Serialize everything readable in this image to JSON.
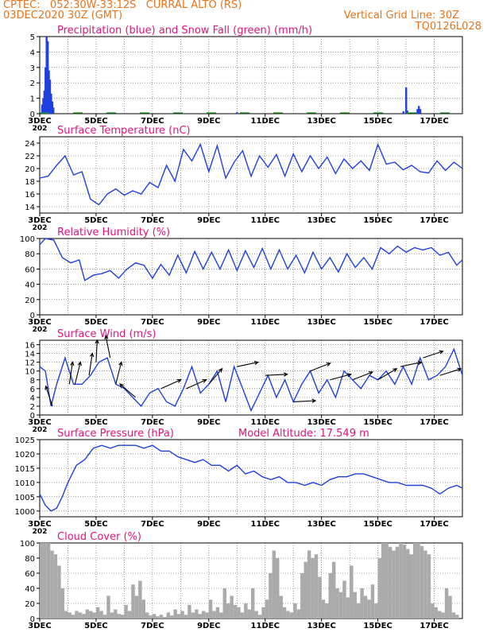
{
  "header": {
    "line1": "CPTEC:   052:30W-33:12S   CURRAL ALTO (RS)",
    "line2": "03DEC2020 30Z (GMT)",
    "grid_note": "Vertical Grid Line: 30Z",
    "model_code": "TQ0126L028"
  },
  "colors": {
    "header": "#e8741c",
    "title": "#e0157a",
    "line": "#1f3fe0",
    "precip": "#1f3fe0",
    "snow": "#1a9a1a",
    "cloud": "#aaaaaa",
    "grid": "#555555",
    "arrow": "#000000"
  },
  "x_axis": {
    "ticks": [
      "3DEC",
      "5DEC",
      "7DEC",
      "9DEC",
      "11DEC",
      "13DEC",
      "15DEC",
      "17DEC"
    ],
    "tick_days": [
      0,
      2,
      4,
      6,
      8,
      10,
      12,
      14
    ],
    "range_days": [
      0,
      15
    ],
    "residual_label": "202"
  },
  "chart_data": [
    {
      "id": "precip",
      "type": "bar",
      "title": "Precipitation (blue) and Snow Fall (green) (mm/h)",
      "ylim": [
        0,
        5
      ],
      "yticks": [
        "0",
        "1",
        "2",
        "3",
        "4",
        "5"
      ],
      "grid": true,
      "bars": [
        {
          "x": 0.08,
          "y": 0.6
        },
        {
          "x": 0.12,
          "y": 1.0
        },
        {
          "x": 0.16,
          "y": 1.5
        },
        {
          "x": 0.2,
          "y": 3.0
        },
        {
          "x": 0.24,
          "y": 5.0
        },
        {
          "x": 0.28,
          "y": 4.7
        },
        {
          "x": 0.32,
          "y": 2.8
        },
        {
          "x": 0.36,
          "y": 2.2
        },
        {
          "x": 0.4,
          "y": 1.3
        },
        {
          "x": 0.44,
          "y": 0.8
        },
        {
          "x": 0.48,
          "y": 0.4
        },
        {
          "x": 12.9,
          "y": 0.15
        },
        {
          "x": 13.0,
          "y": 1.7
        },
        {
          "x": 13.04,
          "y": 0.2
        },
        {
          "x": 13.4,
          "y": 0.3
        },
        {
          "x": 13.45,
          "y": 0.5
        },
        {
          "x": 13.5,
          "y": 0.3
        },
        {
          "x": 7.0,
          "y": 0.1
        }
      ]
    },
    {
      "id": "temp",
      "type": "line",
      "title": "Surface Temperature (nC)",
      "ylim": [
        13,
        25
      ],
      "yticks": [
        "14",
        "16",
        "18",
        "20",
        "22",
        "24"
      ],
      "grid": true,
      "x": [
        0,
        0.3,
        0.6,
        0.9,
        1.2,
        1.5,
        1.8,
        2.1,
        2.4,
        2.7,
        3.0,
        3.3,
        3.6,
        3.9,
        4.2,
        4.5,
        4.8,
        5.1,
        5.4,
        5.7,
        6.0,
        6.3,
        6.6,
        6.9,
        7.2,
        7.5,
        7.8,
        8.1,
        8.4,
        8.7,
        9.0,
        9.3,
        9.6,
        9.9,
        10.2,
        10.5,
        10.8,
        11.1,
        11.4,
        11.7,
        12.0,
        12.3,
        12.6,
        12.9,
        13.2,
        13.5,
        13.8,
        14.1,
        14.4,
        14.7,
        15.0
      ],
      "y": [
        18.5,
        18.8,
        20.5,
        22.0,
        19.0,
        19.5,
        15.2,
        14.3,
        16.0,
        16.8,
        15.8,
        16.5,
        16.0,
        17.8,
        17.0,
        20.5,
        18.0,
        23.0,
        21.2,
        23.8,
        19.5,
        23.6,
        18.5,
        21.0,
        22.8,
        18.8,
        22.0,
        20.2,
        22.2,
        18.8,
        22.3,
        19.5,
        22.0,
        20.0,
        21.8,
        19.2,
        21.5,
        20.0,
        21.2,
        19.7,
        23.8,
        20.7,
        21.0,
        19.8,
        20.5,
        19.5,
        19.3,
        21.2,
        19.7,
        21.0,
        20.0
      ]
    },
    {
      "id": "rh",
      "type": "line",
      "title": "Relative Humidity (%)",
      "ylim": [
        0,
        100
      ],
      "yticks": [
        "0",
        "20",
        "40",
        "60",
        "80",
        "100"
      ],
      "grid": true,
      "x": [
        0,
        0.2,
        0.5,
        0.8,
        1.1,
        1.4,
        1.6,
        1.9,
        2.2,
        2.5,
        2.8,
        3.1,
        3.4,
        3.7,
        4.0,
        4.3,
        4.6,
        4.9,
        5.2,
        5.5,
        5.8,
        6.1,
        6.4,
        6.7,
        7.0,
        7.3,
        7.6,
        7.9,
        8.2,
        8.5,
        8.8,
        9.1,
        9.4,
        9.7,
        10.0,
        10.3,
        10.6,
        10.9,
        11.2,
        11.5,
        11.8,
        12.1,
        12.4,
        12.7,
        13.0,
        13.3,
        13.6,
        13.9,
        14.2,
        14.5,
        14.8,
        15.0
      ],
      "y": [
        92,
        100,
        98,
        75,
        68,
        72,
        45,
        52,
        54,
        58,
        48,
        60,
        68,
        65,
        48,
        66,
        52,
        78,
        55,
        83,
        60,
        82,
        60,
        85,
        58,
        84,
        62,
        87,
        60,
        85,
        60,
        78,
        55,
        82,
        60,
        75,
        56,
        80,
        62,
        75,
        60,
        88,
        80,
        90,
        82,
        88,
        85,
        88,
        78,
        82,
        65,
        72
      ]
    },
    {
      "id": "wind",
      "type": "line",
      "title": "Surface Wind (m/s)",
      "ylim": [
        0,
        17
      ],
      "yticks": [
        "0",
        "2",
        "4",
        "6",
        "8",
        "10",
        "12",
        "14",
        "16"
      ],
      "grid": true,
      "x": [
        0,
        0.2,
        0.4,
        0.6,
        0.9,
        1.2,
        1.5,
        1.8,
        2.1,
        2.4,
        2.7,
        3.0,
        3.3,
        3.6,
        3.9,
        4.2,
        4.5,
        4.8,
        5.1,
        5.4,
        5.7,
        6.0,
        6.3,
        6.6,
        6.9,
        7.2,
        7.5,
        7.8,
        8.1,
        8.4,
        8.7,
        9.0,
        9.3,
        9.6,
        9.9,
        10.2,
        10.5,
        10.8,
        11.1,
        11.4,
        11.7,
        12.0,
        12.3,
        12.6,
        12.9,
        13.2,
        13.5,
        13.8,
        14.1,
        14.4,
        14.7,
        15.0
      ],
      "y": [
        11,
        10,
        2,
        7,
        13,
        7,
        7,
        9,
        12,
        13,
        7,
        6,
        4,
        2,
        5,
        6,
        3,
        2,
        6,
        11,
        5,
        7,
        10,
        3,
        11,
        6,
        1,
        5,
        9,
        4,
        8,
        3,
        7,
        10,
        5,
        8,
        4,
        10,
        8,
        6,
        9,
        8,
        10,
        7,
        11,
        7,
        13,
        8,
        9,
        11,
        15,
        9
      ],
      "arrows": [
        {
          "day": 0.45,
          "dx": -0.3,
          "dy": 0.9
        },
        {
          "day": 1.05,
          "dx": 0.15,
          "dy": 1.0
        },
        {
          "day": 1.25,
          "dx": 0.25,
          "dy": 1.0
        },
        {
          "day": 1.75,
          "dx": 0.15,
          "dy": 1.0
        },
        {
          "day": 2.0,
          "dx": 0.05,
          "dy": 1.0
        },
        {
          "day": 2.5,
          "dx": -0.2,
          "dy": 1.0
        },
        {
          "day": 2.7,
          "dx": 0.25,
          "dy": 1.0
        },
        {
          "day": 3.4,
          "dx": -0.7,
          "dy": 0.6
        },
        {
          "day": 4.3,
          "dx": 0.9,
          "dy": 0.4
        },
        {
          "day": 5.2,
          "dx": 0.9,
          "dy": 0.4
        },
        {
          "day": 6.0,
          "dx": 0.6,
          "dy": 0.7
        },
        {
          "day": 7.0,
          "dx": 0.95,
          "dy": 0.2
        },
        {
          "day": 8.0,
          "dx": 1.0,
          "dy": 0.05
        },
        {
          "day": 9.0,
          "dx": 1.0,
          "dy": 0.05
        },
        {
          "day": 9.6,
          "dx": 0.9,
          "dy": 0.35
        },
        {
          "day": 10.3,
          "dx": 0.95,
          "dy": 0.25
        },
        {
          "day": 11.1,
          "dx": 0.9,
          "dy": 0.35
        },
        {
          "day": 12.0,
          "dx": 0.85,
          "dy": 0.5
        },
        {
          "day": 12.8,
          "dx": 0.95,
          "dy": 0.2
        },
        {
          "day": 13.6,
          "dx": 0.9,
          "dy": 0.3
        },
        {
          "day": 14.2,
          "dx": 0.95,
          "dy": 0.3
        }
      ]
    },
    {
      "id": "pressure",
      "type": "line",
      "title": "Surface Pressure (hPa)",
      "extra_label": "Model Altitude: 17.549 m",
      "ylim": [
        998,
        1025
      ],
      "yticks": [
        "1000",
        "1005",
        "1010",
        "1015",
        "1020",
        "1025"
      ],
      "grid": true,
      "x": [
        0,
        0.2,
        0.4,
        0.6,
        0.8,
        1.0,
        1.3,
        1.6,
        1.9,
        2.2,
        2.5,
        2.8,
        3.1,
        3.4,
        3.7,
        4.0,
        4.3,
        4.6,
        4.9,
        5.2,
        5.5,
        5.8,
        6.1,
        6.4,
        6.7,
        7.0,
        7.3,
        7.6,
        7.9,
        8.2,
        8.5,
        8.8,
        9.1,
        9.4,
        9.7,
        10.0,
        10.3,
        10.6,
        10.9,
        11.2,
        11.5,
        11.8,
        12.1,
        12.4,
        12.7,
        13.0,
        13.3,
        13.6,
        13.9,
        14.2,
        14.5,
        14.8,
        15.0
      ],
      "y": [
        1006,
        1002,
        1000,
        1001,
        1005,
        1010,
        1016,
        1018,
        1022,
        1023,
        1022,
        1023,
        1023,
        1023,
        1022,
        1023,
        1021,
        1021,
        1019,
        1018,
        1017,
        1018,
        1016,
        1016,
        1014,
        1016,
        1013,
        1014,
        1012,
        1011,
        1012,
        1010,
        1010,
        1009,
        1010,
        1009,
        1011,
        1012,
        1012,
        1013,
        1013,
        1012,
        1011,
        1010,
        1010,
        1009,
        1009,
        1009,
        1008,
        1006,
        1008,
        1009,
        1008
      ]
    },
    {
      "id": "cloud",
      "type": "bar",
      "title": "Cloud Cover (%)",
      "ylim": [
        0,
        100
      ],
      "yticks": [
        "0",
        "20",
        "40",
        "60",
        "80",
        "100"
      ],
      "grid": true,
      "x_start": 0,
      "x_step": 0.125,
      "values": [
        100,
        100,
        100,
        90,
        85,
        70,
        40,
        10,
        8,
        5,
        10,
        8,
        6,
        12,
        10,
        8,
        15,
        10,
        5,
        30,
        8,
        12,
        6,
        5,
        18,
        10,
        45,
        30,
        50,
        25,
        8,
        4,
        6,
        3,
        5,
        2,
        8,
        4,
        12,
        6,
        10,
        5,
        18,
        8,
        12,
        6,
        10,
        8,
        25,
        10,
        15,
        8,
        40,
        20,
        30,
        18,
        15,
        8,
        20,
        12,
        40,
        10,
        5,
        15,
        25,
        60,
        90,
        80,
        30,
        15,
        10,
        8,
        20,
        12,
        60,
        75,
        90,
        80,
        85,
        55,
        25,
        20,
        60,
        75,
        40,
        35,
        50,
        28,
        70,
        35,
        20,
        40,
        30,
        25,
        45,
        20,
        80,
        100,
        100,
        95,
        90,
        95,
        100,
        98,
        92,
        85,
        100,
        100,
        96,
        90,
        85,
        20,
        15,
        10,
        8,
        40,
        30,
        8,
        5
      ]
    }
  ],
  "panel_titles": {
    "precip": "Precipitation (blue) and Snow Fall (green) (mm/h)",
    "temp": "Surface Temperature (nC)",
    "rh": "Relative Humidity (%)",
    "wind": "Surface Wind (m/s)",
    "pressure": "Surface Pressure (hPa)",
    "pressure_extra": "Model Altitude: 17.549 m",
    "cloud": "Cloud Cover (%)"
  }
}
